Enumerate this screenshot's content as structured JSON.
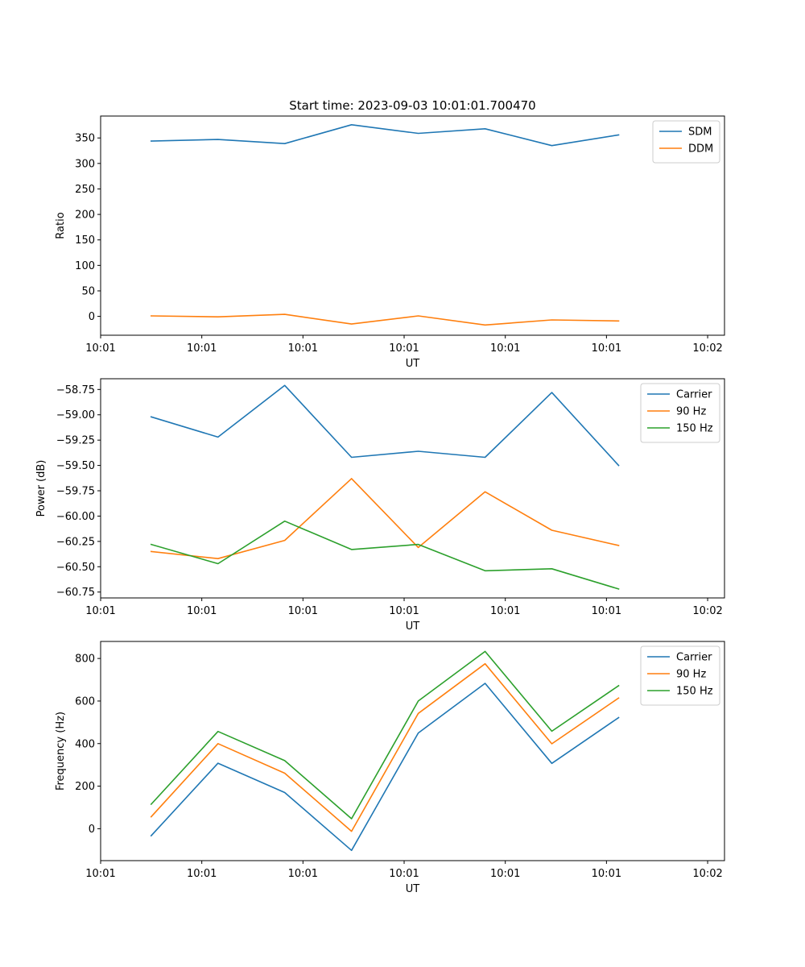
{
  "figure_title": "Start time: 2023-09-03 10:01:01.700470",
  "colors": {
    "blue": "#1f77b4",
    "orange": "#ff7f0e",
    "green": "#2ca02c"
  },
  "chart_data": [
    {
      "type": "line",
      "title": "Start time: 2023-09-03 10:01:01.700470",
      "xlabel": "UT",
      "ylabel": "Ratio",
      "xlim": [
        0,
        9.25
      ],
      "ylim": [
        -37,
        393
      ],
      "yticks": [
        0,
        50,
        100,
        150,
        200,
        250,
        300,
        350
      ],
      "yticklabels": [
        "0",
        "50",
        "100",
        "150",
        "200",
        "250",
        "300",
        "350"
      ],
      "xticks": [
        0,
        1.5,
        3,
        4.5,
        6,
        7.5,
        9
      ],
      "xticklabels": [
        "10:01",
        "10:01",
        "10:01",
        "10:01",
        "10:01",
        "10:01",
        "10:02"
      ],
      "x": [
        0.75,
        1.74,
        2.73,
        3.72,
        4.71,
        5.7,
        6.69,
        7.68
      ],
      "series": [
        {
          "name": "SDM",
          "color": "#1f77b4",
          "values": [
            344,
            347,
            339,
            376,
            359,
            368,
            335,
            356
          ]
        },
        {
          "name": "DDM",
          "color": "#ff7f0e",
          "values": [
            1,
            -1,
            4,
            -15,
            1,
            -17,
            -7,
            -9
          ]
        }
      ],
      "legend": "top-right"
    },
    {
      "type": "line",
      "title": "",
      "xlabel": "UT",
      "ylabel": "Power (dB)",
      "xlim": [
        0,
        9.25
      ],
      "ylim": [
        -60.808,
        -58.644
      ],
      "yticks": [
        -60.75,
        -60.5,
        -60.25,
        -60.0,
        -59.75,
        -59.5,
        -59.25,
        -59.0,
        -58.75
      ],
      "yticklabels": [
        "−60.75",
        "−60.50",
        "−60.25",
        "−60.00",
        "−59.75",
        "−59.50",
        "−59.25",
        "−59.00",
        "−58.75"
      ],
      "xticks": [
        0,
        1.5,
        3,
        4.5,
        6,
        7.5,
        9
      ],
      "xticklabels": [
        "10:01",
        "10:01",
        "10:01",
        "10:01",
        "10:01",
        "10:01",
        "10:02"
      ],
      "x": [
        0.75,
        1.74,
        2.73,
        3.72,
        4.71,
        5.7,
        6.69,
        7.68
      ],
      "series": [
        {
          "name": "Carrier",
          "color": "#1f77b4",
          "values": [
            -59.02,
            -59.22,
            -58.71,
            -59.42,
            -59.36,
            -59.42,
            -58.78,
            -59.5
          ]
        },
        {
          "name": "90 Hz",
          "color": "#ff7f0e",
          "values": [
            -60.35,
            -60.42,
            -60.24,
            -59.63,
            -60.31,
            -59.76,
            -60.14,
            -60.29
          ]
        },
        {
          "name": "150 Hz",
          "color": "#2ca02c",
          "values": [
            -60.28,
            -60.47,
            -60.05,
            -60.33,
            -60.28,
            -60.54,
            -60.52,
            -60.72
          ]
        }
      ],
      "legend": "top-right"
    },
    {
      "type": "line",
      "title": "",
      "xlabel": "UT",
      "ylabel": "Frequency (Hz)",
      "xlim": [
        0,
        9.25
      ],
      "ylim": [
        -150,
        880
      ],
      "yticks": [
        0,
        200,
        400,
        600,
        800
      ],
      "yticklabels": [
        "0",
        "200",
        "400",
        "600",
        "800"
      ],
      "xticks": [
        0,
        1.5,
        3,
        4.5,
        6,
        7.5,
        9
      ],
      "xticklabels": [
        "10:01",
        "10:01",
        "10:01",
        "10:01",
        "10:01",
        "10:01",
        "10:02"
      ],
      "x": [
        0.75,
        1.74,
        2.73,
        3.72,
        4.71,
        5.7,
        6.69,
        7.68
      ],
      "series": [
        {
          "name": "Carrier",
          "color": "#1f77b4",
          "values": [
            -33,
            308,
            170,
            -102,
            450,
            683,
            307,
            522
          ]
        },
        {
          "name": "90 Hz",
          "color": "#ff7f0e",
          "values": [
            56,
            400,
            261,
            -12,
            542,
            775,
            399,
            614
          ]
        },
        {
          "name": "150 Hz",
          "color": "#2ca02c",
          "values": [
            115,
            457,
            320,
            47,
            600,
            833,
            458,
            672
          ]
        }
      ],
      "legend": "top-right"
    }
  ]
}
